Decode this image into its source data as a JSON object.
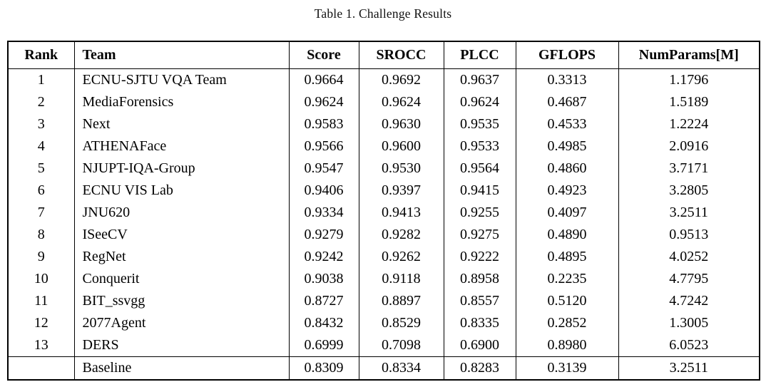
{
  "caption": "Table 1. Challenge Results",
  "table": {
    "columns": [
      "Rank",
      "Team",
      "Score",
      "SROCC",
      "PLCC",
      "GFLOPS",
      "NumParams[M]"
    ],
    "column_keys": [
      "rank",
      "team",
      "score",
      "srocc",
      "plcc",
      "gflops",
      "numparams"
    ],
    "rows": [
      [
        "1",
        "ECNU-SJTU VQA Team",
        "0.9664",
        "0.9692",
        "0.9637",
        "0.3313",
        "1.1796"
      ],
      [
        "2",
        "MediaForensics",
        "0.9624",
        "0.9624",
        "0.9624",
        "0.4687",
        "1.5189"
      ],
      [
        "3",
        "Next",
        "0.9583",
        "0.9630",
        "0.9535",
        "0.4533",
        "1.2224"
      ],
      [
        "4",
        "ATHENAFace",
        "0.9566",
        "0.9600",
        "0.9533",
        "0.4985",
        "2.0916"
      ],
      [
        "5",
        "NJUPT-IQA-Group",
        "0.9547",
        "0.9530",
        "0.9564",
        "0.4860",
        "3.7171"
      ],
      [
        "6",
        "ECNU VIS Lab",
        "0.9406",
        "0.9397",
        "0.9415",
        "0.4923",
        "3.2805"
      ],
      [
        "7",
        "JNU620",
        "0.9334",
        "0.9413",
        "0.9255",
        "0.4097",
        "3.2511"
      ],
      [
        "8",
        "ISeeCV",
        "0.9279",
        "0.9282",
        "0.9275",
        "0.4890",
        "0.9513"
      ],
      [
        "9",
        "RegNet",
        "0.9242",
        "0.9262",
        "0.9222",
        "0.4895",
        "4.0252"
      ],
      [
        "10",
        "Conquerit",
        "0.9038",
        "0.9118",
        "0.8958",
        "0.2235",
        "4.7795"
      ],
      [
        "11",
        "BIT_ssvgg",
        "0.8727",
        "0.8897",
        "0.8557",
        "0.5120",
        "4.7242"
      ],
      [
        "12",
        "2077Agent",
        "0.8432",
        "0.8529",
        "0.8335",
        "0.2852",
        "1.3005"
      ],
      [
        "13",
        "DERS",
        "0.6999",
        "0.7098",
        "0.6900",
        "0.8980",
        "6.0523"
      ]
    ],
    "baseline_row": [
      "",
      "Baseline",
      "0.8309",
      "0.8334",
      "0.8283",
      "0.3139",
      "3.2511"
    ]
  }
}
